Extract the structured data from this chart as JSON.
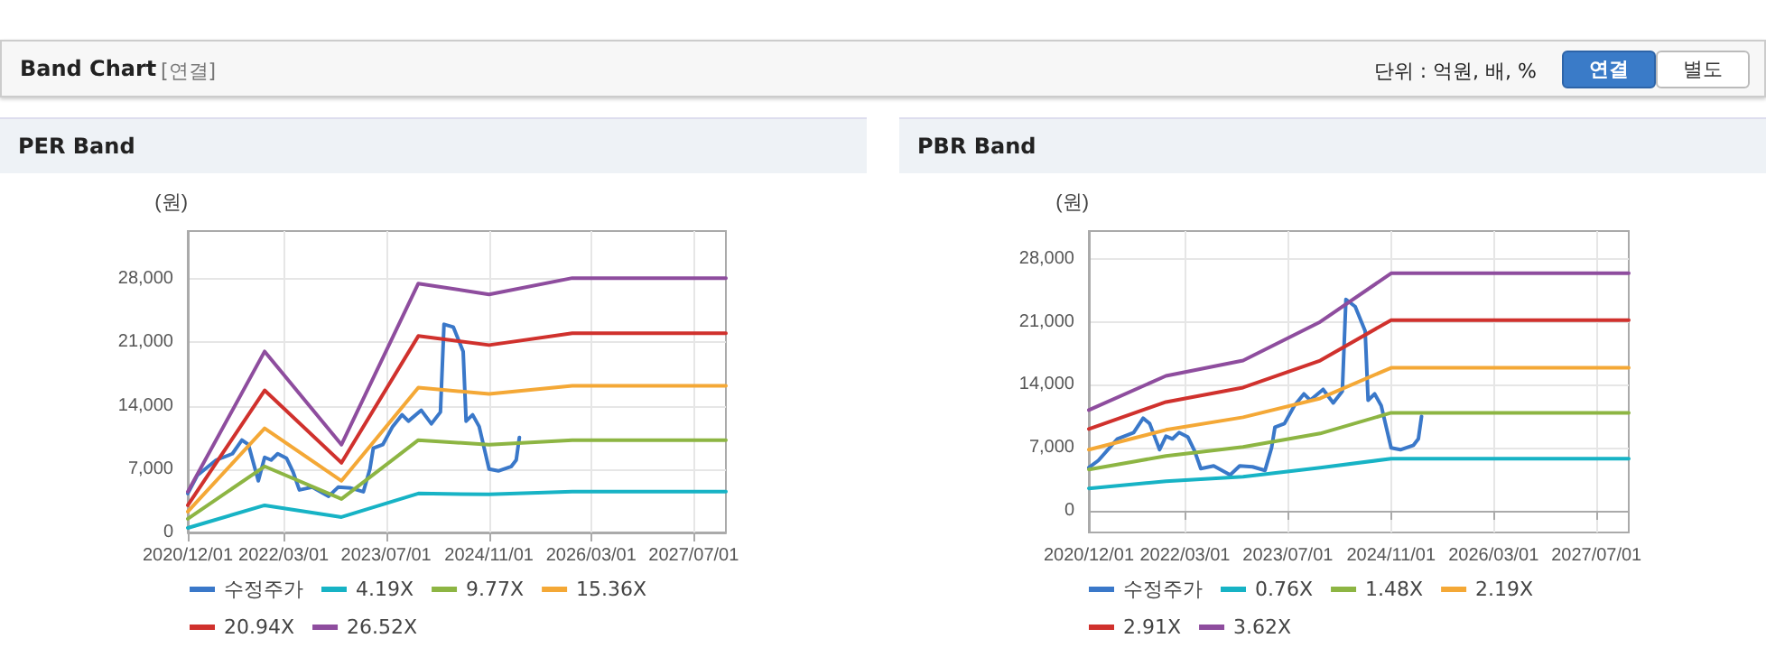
{
  "chart_data": [
    {
      "type": "line",
      "title": "PER Band",
      "ylabel": "(원)",
      "annotations": [
        "Band Chart",
        "[연결]",
        "단위 : 억원, 배, %",
        "연결",
        "별도"
      ],
      "xlim": [
        "2020-12-01",
        "2027-12-01"
      ],
      "xticks": [
        {
          "value": "2020-12-01",
          "label": "2020/12/01"
        },
        {
          "value": "2022-03-01",
          "label": "2022/03/01"
        },
        {
          "value": "2023-07-01",
          "label": "2023/07/01"
        },
        {
          "value": "2024-11-01",
          "label": "2024/11/01"
        },
        {
          "value": "2026-03-01",
          "label": "2026/03/01"
        },
        {
          "value": "2027-07-01",
          "label": "2027/07/01"
        }
      ],
      "ylim": [
        0,
        33300
      ],
      "yticks": [
        0,
        {
          "value": 7000,
          "label": "7,000"
        },
        {
          "value": 14000,
          "label": "14,000"
        },
        {
          "value": 21000,
          "label": "21,000"
        },
        {
          "value": 28000,
          "label": "28,000"
        }
      ],
      "grid": true,
      "legend": "bottom",
      "marker": "none",
      "series": [
        {
          "name": "수정주가",
          "color": "#3a78c9",
          "x": [
            "2020-12-01",
            "2021-01-15",
            "2021-04-15",
            "2021-07-01",
            "2021-08-15",
            "2021-09-15",
            "2021-11-01",
            "2021-12-01",
            "2022-01-01",
            "2022-02-01",
            "2022-03-15",
            "2022-04-15",
            "2022-05-15",
            "2022-07-15",
            "2022-10-01",
            "2022-11-15",
            "2023-01-15",
            "2023-03-15",
            "2023-04-15",
            "2023-05-01",
            "2023-06-15",
            "2023-08-01",
            "2023-09-15",
            "2023-10-15",
            "2023-12-15",
            "2024-02-01",
            "2024-03-15",
            "2024-04-01",
            "2024-05-15",
            "2024-07-01",
            "2024-07-15",
            "2024-08-15",
            "2024-09-15",
            "2024-11-01",
            "2024-12-15",
            "2025-02-15",
            "2025-03-10",
            "2025-03-25"
          ],
          "values": [
            4300,
            6300,
            8000,
            8700,
            10200,
            9700,
            5700,
            8300,
            8000,
            8700,
            8200,
            6700,
            4700,
            5000,
            4000,
            5000,
            4900,
            4500,
            7000,
            9300,
            9700,
            11700,
            13000,
            12300,
            13500,
            12000,
            13300,
            23000,
            22700,
            20000,
            12300,
            13000,
            11700,
            7000,
            6800,
            7300,
            8000,
            10500
          ]
        },
        {
          "name": "4.19X",
          "color": "#17b3c5",
          "x": [
            "2020-12-01",
            "2021-12-01",
            "2022-12-01",
            "2023-12-01",
            "2024-11-01",
            "2025-12-01",
            "2027-12-01"
          ],
          "values": [
            500,
            3000,
            1700,
            4300,
            4200,
            4500,
            4500
          ]
        },
        {
          "name": "9.77X",
          "color": "#8db543",
          "x": [
            "2020-12-01",
            "2021-12-01",
            "2022-12-01",
            "2023-12-01",
            "2024-11-01",
            "2025-12-01",
            "2027-12-01"
          ],
          "values": [
            1500,
            7300,
            3700,
            10200,
            9700,
            10200,
            10200
          ]
        },
        {
          "name": "15.36X",
          "color": "#f4a836",
          "x": [
            "2020-12-01",
            "2021-12-01",
            "2022-12-01",
            "2023-12-01",
            "2024-11-01",
            "2025-12-01",
            "2027-12-01"
          ],
          "values": [
            2300,
            11500,
            5700,
            16000,
            15300,
            16200,
            16200
          ]
        },
        {
          "name": "20.94X",
          "color": "#d0312d",
          "x": [
            "2020-12-01",
            "2021-12-01",
            "2022-12-01",
            "2023-12-01",
            "2024-11-01",
            "2025-12-01",
            "2027-12-01"
          ],
          "values": [
            3000,
            15700,
            7700,
            21700,
            20700,
            22000,
            22000
          ]
        },
        {
          "name": "26.52X",
          "color": "#8e4d9e",
          "x": [
            "2020-12-01",
            "2021-12-01",
            "2022-12-01",
            "2023-12-01",
            "2024-11-01",
            "2025-12-01",
            "2027-12-01"
          ],
          "values": [
            4500,
            20000,
            9700,
            27500,
            26300,
            28100,
            28100
          ]
        }
      ]
    },
    {
      "type": "line",
      "title": "PBR Band",
      "ylabel": "(원)",
      "xlim": [
        "2020-12-01",
        "2027-12-01"
      ],
      "xticks": [
        {
          "value": "2020-12-01",
          "label": "2020/12/01"
        },
        {
          "value": "2022-03-01",
          "label": "2022/03/01"
        },
        {
          "value": "2023-07-01",
          "label": "2023/07/01"
        },
        {
          "value": "2024-11-01",
          "label": "2024/11/01"
        },
        {
          "value": "2026-03-01",
          "label": "2026/03/01"
        },
        {
          "value": "2027-07-01",
          "label": "2027/07/01"
        }
      ],
      "ylim": [
        -2400,
        31100
      ],
      "yticks": [
        0,
        {
          "value": 7000,
          "label": "7,000"
        },
        {
          "value": 14000,
          "label": "14,000"
        },
        {
          "value": 21000,
          "label": "21,000"
        },
        {
          "value": 28000,
          "label": "28,000"
        }
      ],
      "grid": true,
      "legend": "bottom",
      "marker": "none",
      "series": [
        {
          "name": "수정주가",
          "color": "#3a78c9",
          "x": [
            "2020-12-01",
            "2021-01-15",
            "2021-04-15",
            "2021-07-01",
            "2021-08-15",
            "2021-09-15",
            "2021-11-01",
            "2021-12-01",
            "2022-01-01",
            "2022-02-01",
            "2022-03-15",
            "2022-04-15",
            "2022-05-15",
            "2022-07-15",
            "2022-10-01",
            "2022-11-15",
            "2023-01-15",
            "2023-03-15",
            "2023-04-15",
            "2023-05-01",
            "2023-06-15",
            "2023-08-01",
            "2023-09-15",
            "2023-10-15",
            "2023-12-15",
            "2024-02-01",
            "2024-03-15",
            "2024-04-01",
            "2024-05-15",
            "2024-07-01",
            "2024-07-15",
            "2024-08-15",
            "2024-09-15",
            "2024-11-01",
            "2024-12-15",
            "2025-02-15",
            "2025-03-10",
            "2025-03-25"
          ],
          "values": [
            4800,
            5600,
            8000,
            8700,
            10300,
            9700,
            6800,
            8300,
            8000,
            8700,
            8200,
            6700,
            4700,
            5000,
            4000,
            5000,
            4900,
            4500,
            7000,
            9300,
            9700,
            11700,
            13000,
            12300,
            13500,
            12000,
            13300,
            23500,
            22700,
            20000,
            12300,
            13000,
            11700,
            7000,
            6800,
            7300,
            8000,
            10500
          ]
        },
        {
          "name": "0.76X",
          "color": "#17b3c5",
          "x": [
            "2020-12-01",
            "2021-12-01",
            "2022-12-01",
            "2023-12-01",
            "2024-11-01",
            "2027-12-01"
          ],
          "values": [
            2500,
            3300,
            3800,
            4800,
            5800,
            5800
          ]
        },
        {
          "name": "1.48X",
          "color": "#8db543",
          "x": [
            "2020-12-01",
            "2021-12-01",
            "2022-12-01",
            "2023-12-01",
            "2024-11-01",
            "2027-12-01"
          ],
          "values": [
            4600,
            6100,
            7100,
            8600,
            10900,
            10900
          ]
        },
        {
          "name": "2.19X",
          "color": "#f4a836",
          "x": [
            "2020-12-01",
            "2021-12-01",
            "2022-12-01",
            "2023-12-01",
            "2024-11-01",
            "2027-12-01"
          ],
          "values": [
            6800,
            9000,
            10400,
            12500,
            15900,
            15900
          ]
        },
        {
          "name": "2.91X",
          "color": "#d0312d",
          "x": [
            "2020-12-01",
            "2021-12-01",
            "2022-12-01",
            "2023-12-01",
            "2024-11-01",
            "2027-12-01"
          ],
          "values": [
            9100,
            12100,
            13700,
            16700,
            21200,
            21200
          ]
        },
        {
          "name": "3.62X",
          "color": "#8e4d9e",
          "x": [
            "2020-12-01",
            "2021-12-01",
            "2022-12-01",
            "2023-12-01",
            "2024-11-01",
            "2027-12-01"
          ],
          "values": [
            11200,
            15000,
            16700,
            21000,
            26400,
            26400
          ]
        }
      ]
    }
  ]
}
